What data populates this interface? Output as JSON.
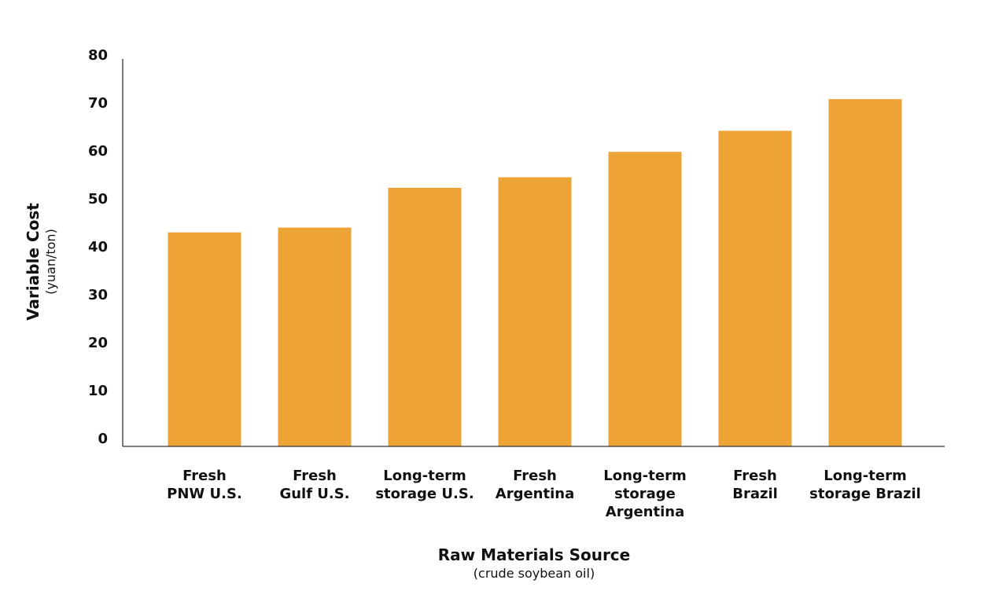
{
  "chart_data": {
    "type": "bar",
    "categories": [
      [
        "Fresh",
        "PNW U.S."
      ],
      [
        "Fresh",
        "Gulf U.S."
      ],
      [
        "Long-term",
        "storage U.S."
      ],
      [
        "Fresh",
        "Argentina"
      ],
      [
        "Long-term",
        "storage",
        "Argentina"
      ],
      [
        "Fresh",
        "Brazil"
      ],
      [
        "Long-term",
        "storage Brazil"
      ]
    ],
    "values": [
      43,
      44,
      52.3,
      54.5,
      59.8,
      64.2,
      70.8
    ],
    "ylim": [
      0,
      80
    ],
    "yticks": [
      0,
      10,
      20,
      30,
      40,
      50,
      60,
      70,
      80
    ],
    "ylabel": "Variable Cost",
    "ylabel_sub": "(yuan/ton)",
    "xlabel": "Raw Materials Source",
    "xlabel_sub": "(crude soybean oil)",
    "grid": false,
    "legend": "none",
    "bar_color": "#EDA336",
    "axis_color": "#333333"
  }
}
